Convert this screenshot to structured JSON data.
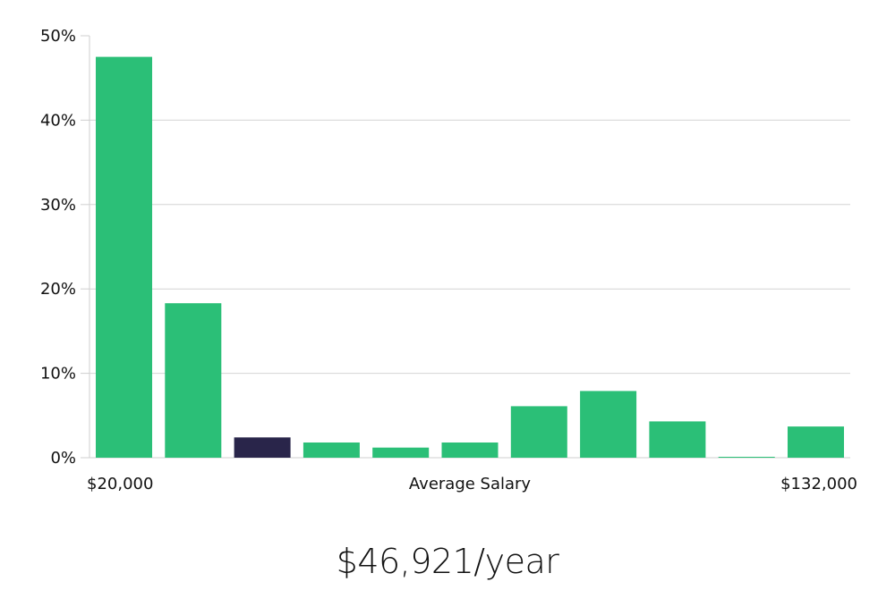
{
  "chart_data": {
    "type": "bar",
    "title": "",
    "xlabel": "Average Salary",
    "ylabel": "",
    "x_start_label": "$20,000",
    "x_end_label": "$132,000",
    "ylim": [
      0,
      50
    ],
    "yticks": [
      "0%",
      "10%",
      "20%",
      "30%",
      "40%",
      "50%"
    ],
    "grid": true,
    "values": [
      47.5,
      18.3,
      2.4,
      1.8,
      1.2,
      1.8,
      6.1,
      7.9,
      4.3,
      0.1,
      3.7
    ],
    "highlight_index": 2,
    "colors": {
      "bar": "#2bbf77",
      "highlight": "#29254a",
      "grid": "#d4d4d4",
      "axis": "#cfcfcf"
    }
  },
  "summary": {
    "salary_text": "$46,921/year"
  }
}
